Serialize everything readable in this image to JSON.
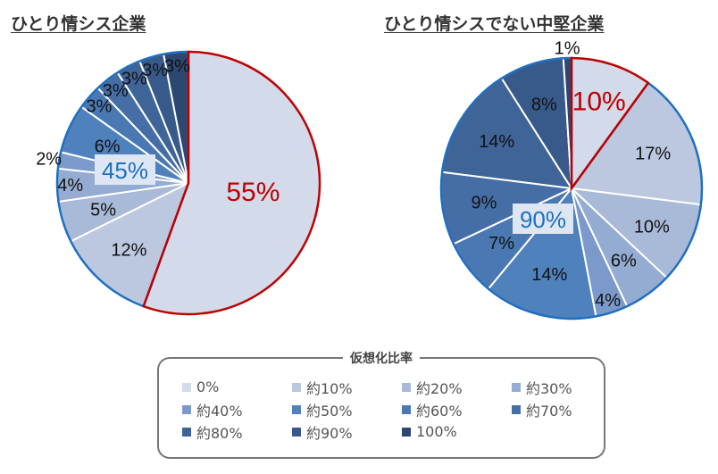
{
  "chart_data": [
    {
      "type": "pie",
      "title": "ひとり情シス企業",
      "categories": [
        "0%",
        "約10%",
        "約20%",
        "約30%",
        "約40%",
        "約50%",
        "約60%",
        "約70%",
        "約80%",
        "約90%",
        "100%"
      ],
      "values": [
        55,
        12,
        5,
        4,
        2,
        6,
        3,
        3,
        3,
        3,
        3
      ],
      "labels": [
        "55%",
        "12%",
        "5%",
        "4%",
        "2%",
        "6%",
        "3%",
        "3%",
        "3%",
        "3%",
        "3%"
      ],
      "group_annotation": "45%",
      "highlight_color_zero": "#c00000",
      "highlight_color_rest": "#1f6fc0"
    },
    {
      "type": "pie",
      "title": "ひとり情シスでない中堅企業",
      "categories": [
        "0%",
        "約10%",
        "約20%",
        "約30%",
        "約40%",
        "約50%",
        "約60%",
        "約70%",
        "約80%",
        "約90%",
        "100%"
      ],
      "values": [
        10,
        17,
        10,
        6,
        4,
        14,
        7,
        9,
        14,
        8,
        1
      ],
      "labels": [
        "10%",
        "17%",
        "10%",
        "6%",
        "4%",
        "14%",
        "7%",
        "9%",
        "14%",
        "8%",
        "1%"
      ],
      "group_annotation": "90%",
      "highlight_color_zero": "#c00000",
      "highlight_color_rest": "#1f6fc0"
    }
  ],
  "legend": {
    "title": "仮想化比率",
    "items": [
      "0%",
      "約10%",
      "約20%",
      "約30%",
      "約40%",
      "約50%",
      "約60%",
      "約70%",
      "約80%",
      "約90%",
      "100%"
    ],
    "colors": [
      "#d3dae9",
      "#bcc8e0",
      "#a9b9d8",
      "#94abd2",
      "#7b9acb",
      "#4f81bd",
      "#4a78b3",
      "#466ea6",
      "#3f6498",
      "#385a8a",
      "#2c4770"
    ]
  }
}
